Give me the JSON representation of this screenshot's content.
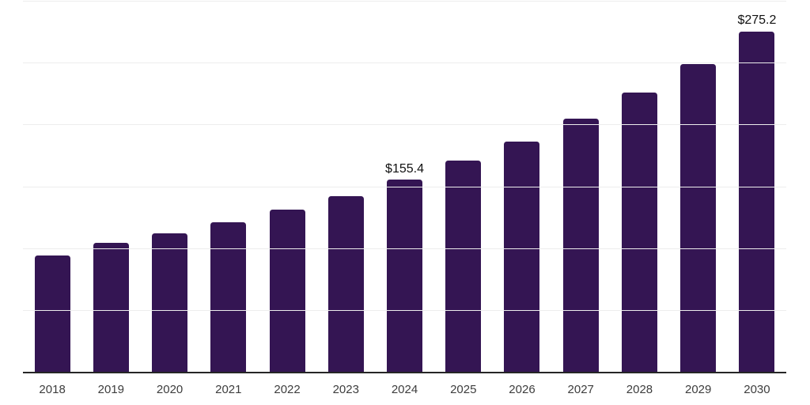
{
  "chart_data": {
    "type": "bar",
    "categories": [
      "2018",
      "2019",
      "2020",
      "2021",
      "2022",
      "2023",
      "2024",
      "2025",
      "2026",
      "2027",
      "2028",
      "2029",
      "2030"
    ],
    "values": [
      93.9,
      104.2,
      111.8,
      120.8,
      131.3,
      141.9,
      155.4,
      170.6,
      186.1,
      204.8,
      225.6,
      248.9,
      275.2
    ],
    "data_labels": [
      "",
      "",
      "",
      "",
      "",
      "",
      "$155.4",
      "",
      "",
      "",
      "",
      "",
      "$275.2"
    ],
    "xlabel": "",
    "ylabel": "",
    "ylim": [
      0,
      300
    ],
    "grid_values": [
      50,
      100,
      150,
      200,
      250,
      300
    ],
    "grid": "horizontal",
    "legend_position": "none",
    "colors": {
      "bar": "#341553",
      "grid_line": "#ededed",
      "axis_line": "#262626",
      "tick_label": "#3d3d3d",
      "data_label": "#111111",
      "background": "#ffffff"
    }
  }
}
